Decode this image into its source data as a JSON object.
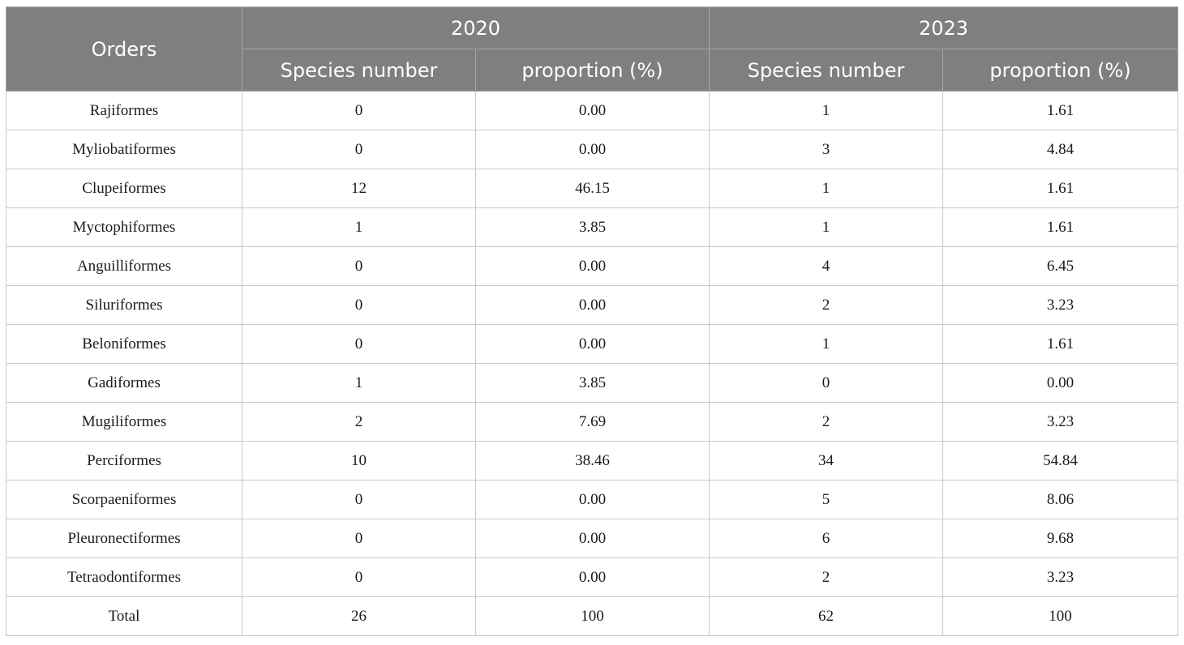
{
  "table": {
    "header": {
      "orders_label": "Orders",
      "year_a": "2020",
      "year_b": "2023",
      "species_number_label": "Species number",
      "proportion_label": "proportion (%)"
    },
    "rows": [
      {
        "order": "Rajiformes",
        "n2020": "0",
        "p2020": "0.00",
        "n2023": "1",
        "p2023": "1.61"
      },
      {
        "order": "Myliobatiformes",
        "n2020": "0",
        "p2020": "0.00",
        "n2023": "3",
        "p2023": "4.84"
      },
      {
        "order": "Clupeiformes",
        "n2020": "12",
        "p2020": "46.15",
        "n2023": "1",
        "p2023": "1.61"
      },
      {
        "order": "Myctophiformes",
        "n2020": "1",
        "p2020": "3.85",
        "n2023": "1",
        "p2023": "1.61"
      },
      {
        "order": "Anguilliformes",
        "n2020": "0",
        "p2020": "0.00",
        "n2023": "4",
        "p2023": "6.45"
      },
      {
        "order": "Siluriformes",
        "n2020": "0",
        "p2020": "0.00",
        "n2023": "2",
        "p2023": "3.23"
      },
      {
        "order": "Beloniformes",
        "n2020": "0",
        "p2020": "0.00",
        "n2023": "1",
        "p2023": "1.61"
      },
      {
        "order": "Gadiformes",
        "n2020": "1",
        "p2020": "3.85",
        "n2023": "0",
        "p2023": "0.00"
      },
      {
        "order": "Mugiliformes",
        "n2020": "2",
        "p2020": "7.69",
        "n2023": "2",
        "p2023": "3.23"
      },
      {
        "order": "Perciformes",
        "n2020": "10",
        "p2020": "38.46",
        "n2023": "34",
        "p2023": "54.84"
      },
      {
        "order": "Scorpaeniformes",
        "n2020": "0",
        "p2020": "0.00",
        "n2023": "5",
        "p2023": "8.06"
      },
      {
        "order": "Pleuronectiformes",
        "n2020": "0",
        "p2020": "0.00",
        "n2023": "6",
        "p2023": "9.68"
      },
      {
        "order": "Tetraodontiformes",
        "n2020": "0",
        "p2020": "0.00",
        "n2023": "2",
        "p2023": "3.23"
      },
      {
        "order": "Total",
        "n2020": "26",
        "p2020": "100",
        "n2023": "62",
        "p2023": "100"
      }
    ]
  }
}
